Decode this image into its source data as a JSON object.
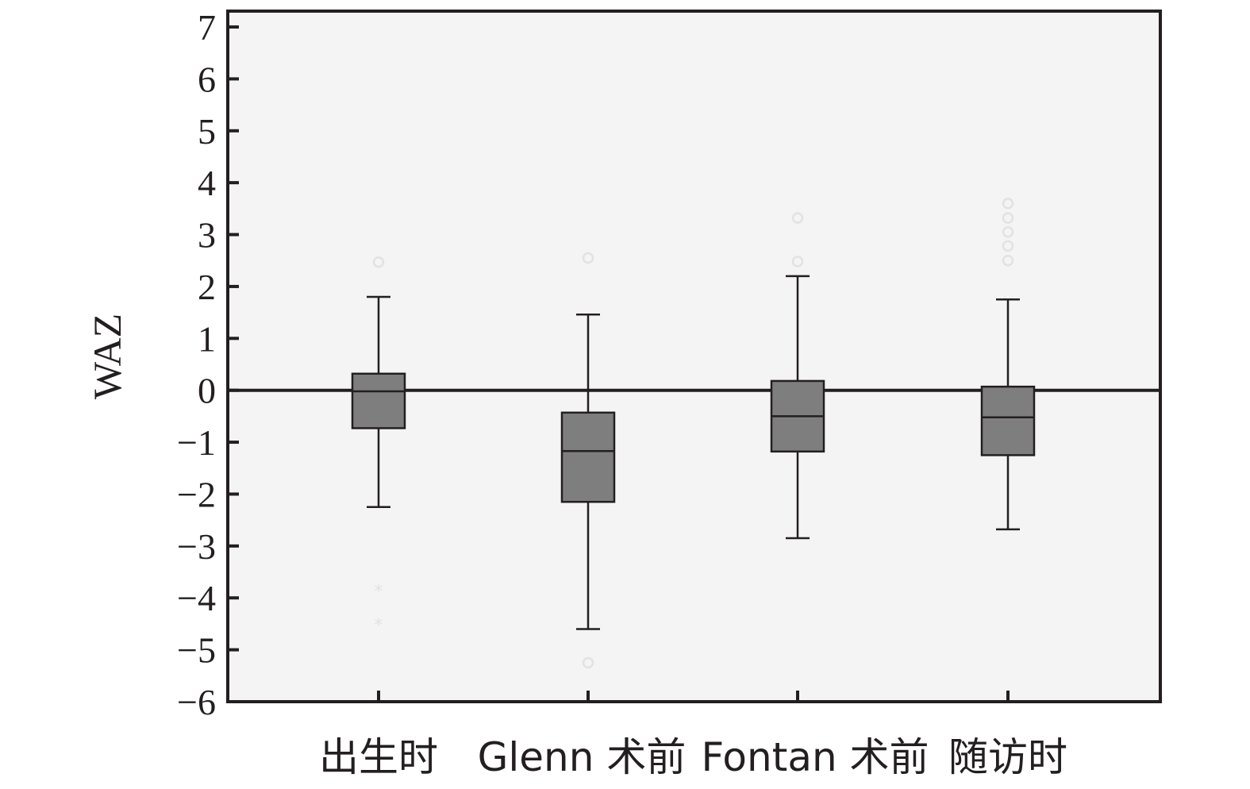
{
  "chart_data": {
    "type": "boxplot",
    "ylabel": "WAZ",
    "xlabel": "",
    "ylim": [
      -6,
      7
    ],
    "yticks": [
      "−6",
      "−5",
      "−4",
      "−3",
      "−2",
      "−1",
      "0",
      "1",
      "2",
      "3",
      "4",
      "5",
      "6",
      "7"
    ],
    "reference_line": 0,
    "categories": [
      "出生时",
      "Glenn 术前",
      "Fontan 术前",
      "随访时"
    ],
    "boxes": [
      {
        "whisker_low": -2.25,
        "q1": -0.73,
        "median": -0.02,
        "q3": 0.32,
        "whisker_high": 1.8,
        "outliers_circle": [
          2.47
        ],
        "outliers_star": [
          -3.85,
          -4.5
        ]
      },
      {
        "whisker_low": -4.6,
        "q1": -2.15,
        "median": -1.17,
        "q3": -0.43,
        "whisker_high": 1.46,
        "outliers_circle": [
          2.55,
          -5.25
        ],
        "outliers_star": []
      },
      {
        "whisker_low": -2.85,
        "q1": -1.18,
        "median": -0.5,
        "q3": 0.18,
        "whisker_high": 2.2,
        "outliers_circle": [
          3.32,
          2.48
        ],
        "outliers_star": []
      },
      {
        "whisker_low": -2.68,
        "q1": -1.25,
        "median": -0.52,
        "q3": 0.07,
        "whisker_high": 1.75,
        "outliers_circle": [
          3.6,
          3.32,
          3.05,
          2.78,
          2.5
        ],
        "outliers_star": []
      }
    ],
    "grid": false,
    "colors": {
      "box_fill": "#7f7e7f",
      "plot_bg": "#f4f4f4",
      "axis": "#231f20",
      "outlier": "#e2e2e2"
    }
  }
}
